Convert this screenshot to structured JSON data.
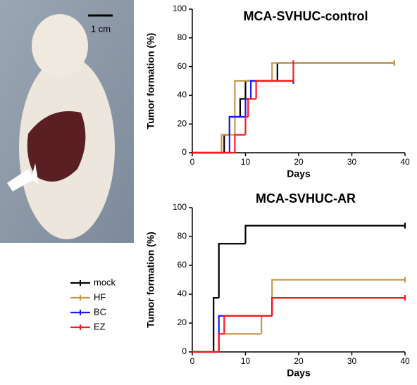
{
  "figure": {
    "scale_bar": "1 cm"
  },
  "chart_data": [
    {
      "type": "step",
      "title": "MCA-SVHUC-control",
      "x_label": "Days",
      "y_label": "Tumor formation (%)",
      "xlim": [
        0,
        40
      ],
      "xticks": [
        0,
        10,
        20,
        30,
        40
      ],
      "ylim": [
        0,
        100
      ],
      "yticks": [
        0,
        20,
        40,
        60,
        80,
        100
      ],
      "series": [
        {
          "name": "mock",
          "color": "#000000",
          "x": [
            0,
            6,
            7,
            9,
            10,
            16,
            38
          ],
          "values": [
            0,
            12.5,
            25,
            37.5,
            50,
            62.5,
            62.5
          ]
        },
        {
          "name": "HF",
          "color": "#c8964a",
          "x": [
            0,
            5.5,
            8,
            15,
            38
          ],
          "values": [
            0,
            12.5,
            50,
            62.5,
            62.5
          ]
        },
        {
          "name": "BC",
          "color": "#1a1aff",
          "x": [
            0,
            7,
            10,
            11,
            19
          ],
          "values": [
            0,
            25,
            37.5,
            50,
            50
          ]
        },
        {
          "name": "EZ",
          "color": "#ff1a1a",
          "x": [
            0,
            8,
            10,
            10.5,
            12,
            19
          ],
          "values": [
            0,
            12.5,
            25,
            37.5,
            50,
            62.5
          ]
        }
      ]
    },
    {
      "type": "step",
      "title": "MCA-SVHUC-AR",
      "x_label": "Days",
      "y_label": "Tumor formation (%)",
      "xlim": [
        0,
        40
      ],
      "xticks": [
        0,
        10,
        20,
        30,
        40
      ],
      "ylim": [
        0,
        100
      ],
      "yticks": [
        0,
        20,
        40,
        60,
        80,
        100
      ],
      "series": [
        {
          "name": "mock",
          "color": "#000000",
          "x": [
            0,
            4,
            5,
            10,
            40
          ],
          "values": [
            0,
            37.5,
            75,
            87.5,
            87.5
          ]
        },
        {
          "name": "HF",
          "color": "#c8964a",
          "x": [
            0,
            5,
            13,
            15,
            40
          ],
          "values": [
            0,
            12.5,
            25,
            50,
            50
          ]
        },
        {
          "name": "BC",
          "color": "#1a1aff",
          "x": [
            0,
            5,
            15,
            40
          ],
          "values": [
            0,
            25,
            37.5,
            37.5
          ]
        },
        {
          "name": "EZ",
          "color": "#ff1a1a",
          "x": [
            0,
            5,
            6,
            15,
            40
          ],
          "values": [
            0,
            12.5,
            25,
            37.5,
            37.5
          ]
        }
      ]
    }
  ]
}
